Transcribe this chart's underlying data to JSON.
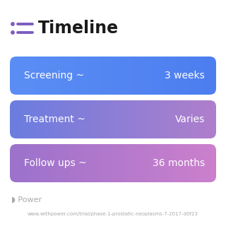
{
  "title": "Timeline",
  "title_icon_color": "#7c5cbf",
  "background_color": "#ffffff",
  "rows": [
    {
      "label": "Screening ~",
      "value": "3 weeks",
      "color_left": "#5b8ef5",
      "color_right": "#4d7ef0"
    },
    {
      "label": "Treatment ~",
      "value": "Varies",
      "color_left": "#6a7de0",
      "color_right": "#b07fcc"
    },
    {
      "label": "Follow ups ~",
      "value": "36 months",
      "color_left": "#9b72cc",
      "color_right": "#cc80cc"
    }
  ],
  "footer_logo_text": "◗ Power",
  "footer_url": "www.withpower.com/trial/phase-1-prostatic-neoplasms-7-2017-d0f23",
  "footer_color": "#aaaaaa",
  "title_fontsize": 17,
  "row_label_fontsize": 10,
  "row_value_fontsize": 10,
  "footer_logo_fontsize": 8,
  "footer_url_fontsize": 5
}
